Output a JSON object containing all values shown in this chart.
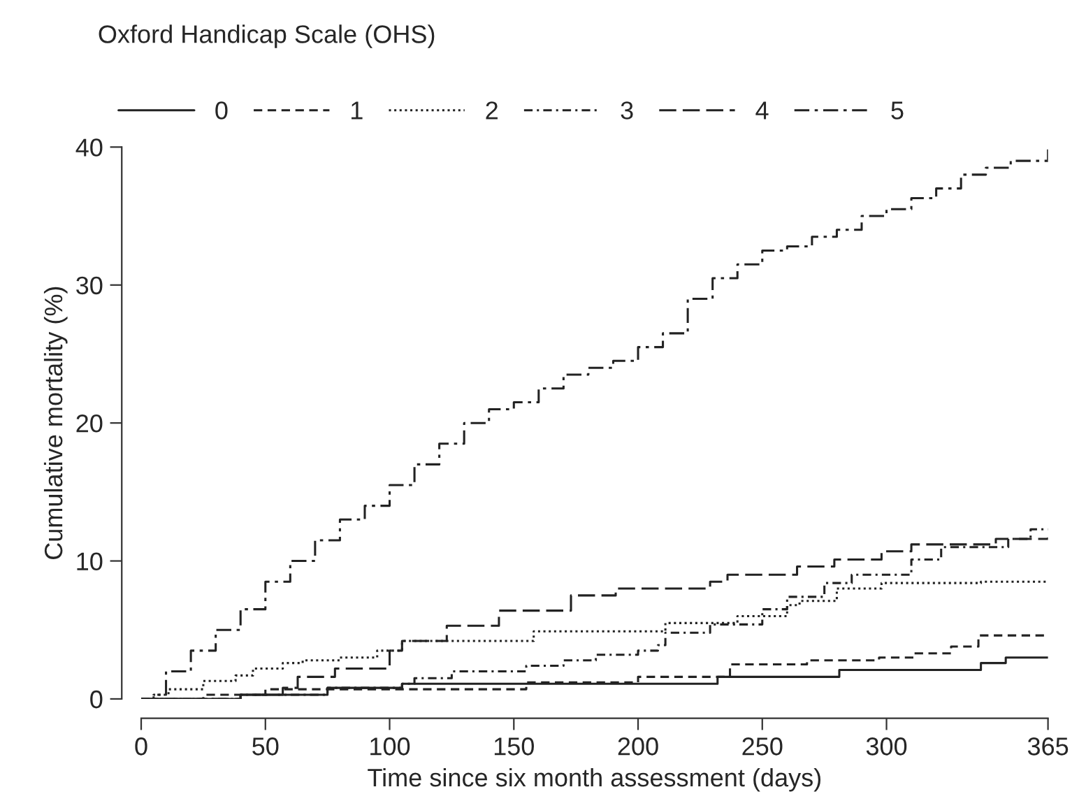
{
  "chart_data": {
    "type": "step",
    "legend_title": "Oxford Handicap Scale (OHS)",
    "xlabel": "Time since six month assessment (days)",
    "ylabel": "Cumulative mortality (%)",
    "xlim": [
      0,
      365
    ],
    "ylim": [
      0,
      40
    ],
    "xticks": [
      0,
      50,
      100,
      150,
      200,
      250,
      300,
      365
    ],
    "yticks": [
      0,
      10,
      20,
      30,
      40
    ],
    "grid": false,
    "legend": "top",
    "series": [
      {
        "name": "0",
        "color": "#222222",
        "line_style": "solid",
        "x": [
          0,
          40,
          75,
          105,
          232,
          281,
          338,
          348,
          365
        ],
        "values": [
          0,
          0.3,
          0.8,
          1.1,
          1.6,
          2.1,
          2.6,
          3.0,
          3.0
        ]
      },
      {
        "name": "1",
        "color": "#222222",
        "line_style": "dashed",
        "x": [
          0,
          25,
          50,
          155,
          200,
          237,
          268,
          297,
          311,
          326,
          337,
          365
        ],
        "values": [
          0,
          0.3,
          0.7,
          1.2,
          1.6,
          2.5,
          2.8,
          3.0,
          3.3,
          3.8,
          4.6,
          4.6
        ]
      },
      {
        "name": "2",
        "color": "#222222",
        "line_style": "dotted",
        "x": [
          0,
          5,
          11,
          25,
          38,
          45,
          57,
          65,
          80,
          95,
          105,
          158,
          211,
          240,
          260,
          265,
          280,
          298,
          338,
          365
        ],
        "values": [
          0,
          0.3,
          0.7,
          1.3,
          1.7,
          2.2,
          2.6,
          2.8,
          3.0,
          3.5,
          4.2,
          4.9,
          5.5,
          6.0,
          6.8,
          7.1,
          8.0,
          8.4,
          8.5,
          8.5
        ]
      },
      {
        "name": "3",
        "color": "#222222",
        "line_style": "dashdot",
        "x": [
          0,
          40,
          75,
          105,
          110,
          125,
          155,
          170,
          183,
          200,
          208,
          211,
          229,
          250,
          260,
          275,
          286,
          310,
          322,
          349,
          358,
          365
        ],
        "values": [
          0,
          0.3,
          0.8,
          1.1,
          1.5,
          2.0,
          2.4,
          2.8,
          3.2,
          3.5,
          3.9,
          4.8,
          5.4,
          6.5,
          7.4,
          8.4,
          9.0,
          10.1,
          11.0,
          11.6,
          12.3,
          12.3
        ]
      },
      {
        "name": "4",
        "color": "#222222",
        "line_style": "longdash",
        "x": [
          0,
          40,
          57,
          63,
          78,
          100,
          105,
          123,
          144,
          173,
          191,
          229,
          236,
          264,
          279,
          298,
          310,
          344,
          365
        ],
        "values": [
          0,
          0.3,
          0.8,
          1.6,
          2.2,
          3.5,
          4.2,
          5.3,
          6.4,
          7.5,
          8.0,
          8.5,
          9.0,
          9.6,
          10.1,
          10.7,
          11.2,
          11.6,
          11.7
        ]
      },
      {
        "name": "5",
        "color": "#222222",
        "line_style": "longdashdot",
        "x": [
          0,
          5,
          10,
          20,
          30,
          40,
          50,
          60,
          70,
          80,
          90,
          100,
          110,
          120,
          130,
          140,
          150,
          160,
          170,
          180,
          190,
          200,
          210,
          220,
          230,
          240,
          250,
          260,
          270,
          280,
          290,
          300,
          310,
          320,
          330,
          340,
          350,
          365
        ],
        "values": [
          0,
          0.3,
          2.0,
          3.5,
          5.0,
          6.5,
          8.5,
          10.0,
          11.5,
          13.0,
          14.0,
          15.5,
          17.0,
          18.5,
          20.0,
          21.0,
          21.5,
          22.5,
          23.5,
          24.0,
          24.5,
          25.5,
          26.5,
          29.0,
          30.5,
          31.5,
          32.5,
          32.8,
          33.5,
          34.0,
          35.0,
          35.5,
          36.3,
          37.0,
          38.0,
          38.5,
          39.0,
          40.0
        ]
      }
    ]
  }
}
